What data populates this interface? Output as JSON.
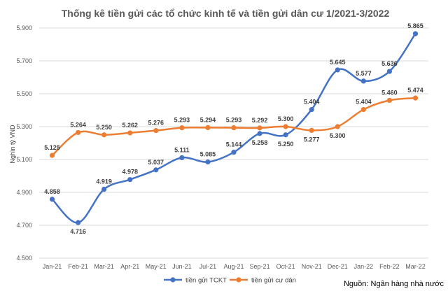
{
  "chart_data": {
    "type": "line",
    "title": "Thống kê tiền gửi các tổ chức kinh tế và tiền gửi dân cư 1/2021-3/2022",
    "ylabel": "Nghìn tỷ VND",
    "xlabel": "",
    "categories": [
      "Jan-21",
      "Feb-21",
      "Mar-21",
      "Apr-21",
      "May-21",
      "Jun-21",
      "Jul-21",
      "Aug-21",
      "Sep-21",
      "Oct-21",
      "Nov-21",
      "Dec-21",
      "Jan-22",
      "Feb-22",
      "Mar-22"
    ],
    "ylim": [
      4.5,
      5.9
    ],
    "yticks": [
      "4.500",
      "4.700",
      "4.900",
      "5.100",
      "5.300",
      "5.500",
      "5.700",
      "5.900"
    ],
    "grid": true,
    "legend_position": "bottom",
    "series": [
      {
        "name": "tiền gửi TCKT",
        "color": "#4472c4",
        "values": [
          4.858,
          4.716,
          4.919,
          4.978,
          5.037,
          5.111,
          5.085,
          5.144,
          5.258,
          5.25,
          5.404,
          5.645,
          5.577,
          5.636,
          5.865
        ],
        "labels": [
          "4.858",
          "4.716",
          "4.919",
          "4.978",
          "5.037",
          "5.111",
          "5.085",
          "5.144",
          "5.258",
          "5.250",
          "5.404",
          "5.645",
          "5.577",
          "5.636",
          "5.865"
        ]
      },
      {
        "name": "tiền gửi cư dân",
        "color": "#ed7d31",
        "values": [
          5.125,
          5.264,
          5.25,
          5.262,
          5.276,
          5.293,
          5.294,
          5.293,
          5.292,
          5.3,
          5.277,
          5.3,
          5.404,
          5.46,
          5.474
        ],
        "labels": [
          "5.125",
          "5.264",
          "5.250",
          "5.262",
          "5.276",
          "5.293",
          "5.294",
          "5.293",
          "5.292",
          "5.300",
          "5.277",
          "5.300",
          "5.404",
          "5.460",
          "5.474"
        ]
      }
    ],
    "source_note": "Nguồn: Ngân hàng nhà nước"
  }
}
